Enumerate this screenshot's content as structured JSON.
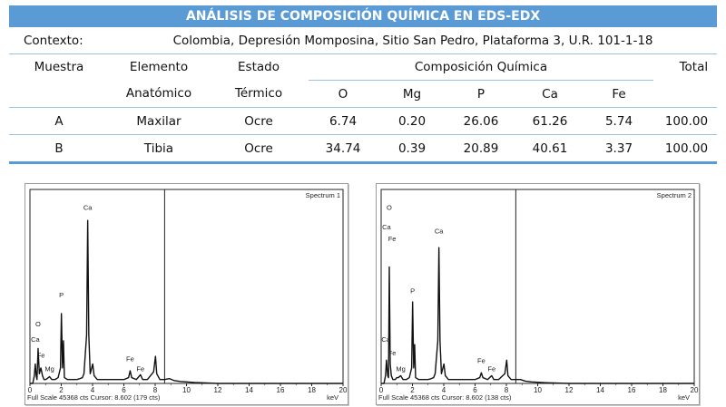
{
  "table": {
    "title": "ANÁLISIS DE COMPOSICIÓN QUÍMICA EN EDS-EDX",
    "context_label": "Contexto:",
    "context_value": "Colombia, Depresión Momposina, Sitio San Pedro, Plataforma 3, U.R. 101-1-18",
    "headers": {
      "sample": "Muestra",
      "element_l1": "Elemento",
      "element_l2": "Anatómico",
      "state_l1": "Estado",
      "state_l2": "Térmico",
      "composition": "Composición Química",
      "total": "Total"
    },
    "elements": [
      "O",
      "Mg",
      "P",
      "Ca",
      "Fe"
    ],
    "rows": [
      {
        "sample": "A",
        "bone": "Maxilar",
        "state": "Ocre",
        "values": [
          "6.74",
          "0.20",
          "26.06",
          "61.26",
          "5.74"
        ],
        "total": "100.00"
      },
      {
        "sample": "B",
        "bone": "Tibia",
        "state": "Ocre",
        "values": [
          "34.74",
          "0.39",
          "20.89",
          "40.61",
          "3.37"
        ],
        "total": "100.00"
      }
    ]
  },
  "spectra": [
    {
      "label": "Spectrum 1",
      "footer": "Full Scale 45368 cts Cursor: 8.602  (179 cts)",
      "xunit": "keV",
      "cursor_kev": 8.602,
      "peak_labels": [
        {
          "text": "Ca",
          "kev": 3.69,
          "value": 0.88
        },
        {
          "text": "P",
          "kev": 2.01,
          "value": 0.43
        },
        {
          "text": "O",
          "kev": 0.52,
          "value": 0.28
        },
        {
          "text": "Ca",
          "kev": 0.34,
          "value": 0.2
        },
        {
          "text": "Fe",
          "kev": 0.7,
          "value": 0.12
        },
        {
          "text": "Mg",
          "kev": 1.25,
          "value": 0.05
        },
        {
          "text": "Fe",
          "kev": 6.4,
          "value": 0.1
        },
        {
          "text": "Fe",
          "kev": 7.06,
          "value": 0.05
        }
      ]
    },
    {
      "label": "Spectrum 2",
      "footer": "Full Scale 45368 cts Cursor: 8.602  (138 cts)",
      "xunit": "keV",
      "cursor_kev": 8.602,
      "peak_labels": [
        {
          "text": "O",
          "kev": 0.52,
          "value": 0.88
        },
        {
          "text": "Ca",
          "kev": 0.34,
          "value": 0.78
        },
        {
          "text": "Fe",
          "kev": 0.7,
          "value": 0.72
        },
        {
          "text": "Ca",
          "kev": 3.69,
          "value": 0.76
        },
        {
          "text": "P",
          "kev": 2.01,
          "value": 0.45
        },
        {
          "text": "Ca",
          "kev": 0.3,
          "value": 0.2
        },
        {
          "text": "Fe",
          "kev": 0.7,
          "value": 0.13
        },
        {
          "text": "Mg",
          "kev": 1.25,
          "value": 0.05
        },
        {
          "text": "Fe",
          "kev": 6.4,
          "value": 0.09
        },
        {
          "text": "Fe",
          "kev": 7.06,
          "value": 0.05
        }
      ]
    }
  ],
  "chart_data": [
    {
      "type": "line",
      "title": "Spectrum 1",
      "xlabel": "keV",
      "xlim": [
        0,
        20
      ],
      "ylim": [
        0,
        1
      ],
      "xticks": [
        "0",
        "2",
        "4",
        "6",
        "8",
        "10",
        "12",
        "14",
        "16",
        "18",
        "20"
      ],
      "series": [
        {
          "x": [
            0.0,
            0.18,
            0.28,
            0.34,
            0.4,
            0.45,
            0.52,
            0.6,
            0.7,
            0.8,
            0.9,
            1.0,
            1.1,
            1.25,
            1.4,
            1.6,
            1.8,
            1.95,
            2.01,
            2.08,
            2.14,
            2.2,
            2.4,
            2.6,
            2.8,
            3.0,
            3.2,
            3.35,
            3.45,
            3.62,
            3.69,
            3.76,
            3.85,
            4.01,
            4.1,
            4.3,
            4.6,
            5.0,
            5.5,
            6.0,
            6.3,
            6.4,
            6.5,
            6.8,
            7.06,
            7.2,
            7.5,
            7.9,
            8.02,
            8.1,
            8.3,
            8.6,
            8.9,
            9.2,
            9.6,
            10.5,
            12.0,
            14.0,
            16.0,
            18.0,
            20.0
          ],
          "y": [
            0.0,
            0.0,
            0.04,
            0.1,
            0.04,
            0.02,
            0.18,
            0.05,
            0.08,
            0.04,
            0.02,
            0.02,
            0.025,
            0.035,
            0.02,
            0.02,
            0.03,
            0.08,
            0.36,
            0.08,
            0.22,
            0.03,
            0.02,
            0.02,
            0.02,
            0.02,
            0.025,
            0.03,
            0.05,
            0.25,
            0.84,
            0.25,
            0.05,
            0.1,
            0.04,
            0.02,
            0.02,
            0.02,
            0.02,
            0.02,
            0.03,
            0.065,
            0.03,
            0.02,
            0.045,
            0.02,
            0.02,
            0.06,
            0.14,
            0.05,
            0.02,
            0.02,
            0.025,
            0.015,
            0.01,
            0.005,
            0.0,
            0.0,
            0.0,
            0.0,
            0.0
          ]
        }
      ]
    },
    {
      "type": "line",
      "title": "Spectrum 2",
      "xlabel": "keV",
      "xlim": [
        0,
        20
      ],
      "ylim": [
        0,
        1
      ],
      "xticks": [
        "0",
        "2",
        "4",
        "6",
        "8",
        "10",
        "12",
        "14",
        "16",
        "18",
        "20"
      ],
      "series": [
        {
          "x": [
            0.0,
            0.18,
            0.28,
            0.34,
            0.42,
            0.47,
            0.52,
            0.58,
            0.65,
            0.75,
            0.9,
            1.0,
            1.1,
            1.25,
            1.4,
            1.6,
            1.8,
            1.95,
            2.01,
            2.08,
            2.14,
            2.2,
            2.4,
            2.6,
            2.8,
            3.0,
            3.2,
            3.35,
            3.45,
            3.62,
            3.69,
            3.76,
            3.85,
            4.01,
            4.1,
            4.3,
            4.6,
            5.0,
            5.5,
            6.0,
            6.3,
            6.4,
            6.5,
            6.8,
            7.06,
            7.2,
            7.5,
            7.9,
            8.02,
            8.1,
            8.3,
            8.6,
            8.9,
            9.2,
            9.6,
            10.5,
            12.0,
            14.0,
            16.0,
            18.0,
            20.0
          ],
          "y": [
            0.0,
            0.0,
            0.04,
            0.12,
            0.04,
            0.03,
            0.6,
            0.1,
            0.04,
            0.02,
            0.02,
            0.03,
            0.03,
            0.04,
            0.02,
            0.02,
            0.03,
            0.08,
            0.42,
            0.08,
            0.2,
            0.03,
            0.02,
            0.02,
            0.02,
            0.02,
            0.025,
            0.03,
            0.05,
            0.22,
            0.7,
            0.22,
            0.05,
            0.1,
            0.04,
            0.02,
            0.02,
            0.02,
            0.02,
            0.02,
            0.03,
            0.055,
            0.03,
            0.02,
            0.04,
            0.02,
            0.02,
            0.05,
            0.12,
            0.04,
            0.02,
            0.02,
            0.02,
            0.012,
            0.008,
            0.004,
            0.0,
            0.0,
            0.0,
            0.0,
            0.0
          ]
        }
      ]
    }
  ]
}
